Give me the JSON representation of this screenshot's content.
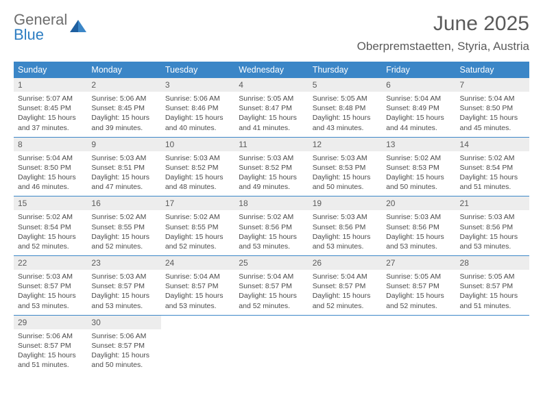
{
  "logo": {
    "top": "General",
    "bottom": "Blue"
  },
  "title": "June 2025",
  "location": "Oberpremstaetten, Styria, Austria",
  "colors": {
    "header_bg": "#3b86c7",
    "header_text": "#ffffff",
    "daynum_bg": "#ededed",
    "border": "#3b86c7",
    "body_text": "#4a4a4a",
    "logo_gray": "#6d6d6d",
    "logo_blue": "#2d7dc2"
  },
  "day_names": [
    "Sunday",
    "Monday",
    "Tuesday",
    "Wednesday",
    "Thursday",
    "Friday",
    "Saturday"
  ],
  "weeks": [
    [
      {
        "n": "1",
        "sr": "Sunrise: 5:07 AM",
        "ss": "Sunset: 8:45 PM",
        "d1": "Daylight: 15 hours",
        "d2": "and 37 minutes."
      },
      {
        "n": "2",
        "sr": "Sunrise: 5:06 AM",
        "ss": "Sunset: 8:45 PM",
        "d1": "Daylight: 15 hours",
        "d2": "and 39 minutes."
      },
      {
        "n": "3",
        "sr": "Sunrise: 5:06 AM",
        "ss": "Sunset: 8:46 PM",
        "d1": "Daylight: 15 hours",
        "d2": "and 40 minutes."
      },
      {
        "n": "4",
        "sr": "Sunrise: 5:05 AM",
        "ss": "Sunset: 8:47 PM",
        "d1": "Daylight: 15 hours",
        "d2": "and 41 minutes."
      },
      {
        "n": "5",
        "sr": "Sunrise: 5:05 AM",
        "ss": "Sunset: 8:48 PM",
        "d1": "Daylight: 15 hours",
        "d2": "and 43 minutes."
      },
      {
        "n": "6",
        "sr": "Sunrise: 5:04 AM",
        "ss": "Sunset: 8:49 PM",
        "d1": "Daylight: 15 hours",
        "d2": "and 44 minutes."
      },
      {
        "n": "7",
        "sr": "Sunrise: 5:04 AM",
        "ss": "Sunset: 8:50 PM",
        "d1": "Daylight: 15 hours",
        "d2": "and 45 minutes."
      }
    ],
    [
      {
        "n": "8",
        "sr": "Sunrise: 5:04 AM",
        "ss": "Sunset: 8:50 PM",
        "d1": "Daylight: 15 hours",
        "d2": "and 46 minutes."
      },
      {
        "n": "9",
        "sr": "Sunrise: 5:03 AM",
        "ss": "Sunset: 8:51 PM",
        "d1": "Daylight: 15 hours",
        "d2": "and 47 minutes."
      },
      {
        "n": "10",
        "sr": "Sunrise: 5:03 AM",
        "ss": "Sunset: 8:52 PM",
        "d1": "Daylight: 15 hours",
        "d2": "and 48 minutes."
      },
      {
        "n": "11",
        "sr": "Sunrise: 5:03 AM",
        "ss": "Sunset: 8:52 PM",
        "d1": "Daylight: 15 hours",
        "d2": "and 49 minutes."
      },
      {
        "n": "12",
        "sr": "Sunrise: 5:03 AM",
        "ss": "Sunset: 8:53 PM",
        "d1": "Daylight: 15 hours",
        "d2": "and 50 minutes."
      },
      {
        "n": "13",
        "sr": "Sunrise: 5:02 AM",
        "ss": "Sunset: 8:53 PM",
        "d1": "Daylight: 15 hours",
        "d2": "and 50 minutes."
      },
      {
        "n": "14",
        "sr": "Sunrise: 5:02 AM",
        "ss": "Sunset: 8:54 PM",
        "d1": "Daylight: 15 hours",
        "d2": "and 51 minutes."
      }
    ],
    [
      {
        "n": "15",
        "sr": "Sunrise: 5:02 AM",
        "ss": "Sunset: 8:54 PM",
        "d1": "Daylight: 15 hours",
        "d2": "and 52 minutes."
      },
      {
        "n": "16",
        "sr": "Sunrise: 5:02 AM",
        "ss": "Sunset: 8:55 PM",
        "d1": "Daylight: 15 hours",
        "d2": "and 52 minutes."
      },
      {
        "n": "17",
        "sr": "Sunrise: 5:02 AM",
        "ss": "Sunset: 8:55 PM",
        "d1": "Daylight: 15 hours",
        "d2": "and 52 minutes."
      },
      {
        "n": "18",
        "sr": "Sunrise: 5:02 AM",
        "ss": "Sunset: 8:56 PM",
        "d1": "Daylight: 15 hours",
        "d2": "and 53 minutes."
      },
      {
        "n": "19",
        "sr": "Sunrise: 5:03 AM",
        "ss": "Sunset: 8:56 PM",
        "d1": "Daylight: 15 hours",
        "d2": "and 53 minutes."
      },
      {
        "n": "20",
        "sr": "Sunrise: 5:03 AM",
        "ss": "Sunset: 8:56 PM",
        "d1": "Daylight: 15 hours",
        "d2": "and 53 minutes."
      },
      {
        "n": "21",
        "sr": "Sunrise: 5:03 AM",
        "ss": "Sunset: 8:56 PM",
        "d1": "Daylight: 15 hours",
        "d2": "and 53 minutes."
      }
    ],
    [
      {
        "n": "22",
        "sr": "Sunrise: 5:03 AM",
        "ss": "Sunset: 8:57 PM",
        "d1": "Daylight: 15 hours",
        "d2": "and 53 minutes."
      },
      {
        "n": "23",
        "sr": "Sunrise: 5:03 AM",
        "ss": "Sunset: 8:57 PM",
        "d1": "Daylight: 15 hours",
        "d2": "and 53 minutes."
      },
      {
        "n": "24",
        "sr": "Sunrise: 5:04 AM",
        "ss": "Sunset: 8:57 PM",
        "d1": "Daylight: 15 hours",
        "d2": "and 53 minutes."
      },
      {
        "n": "25",
        "sr": "Sunrise: 5:04 AM",
        "ss": "Sunset: 8:57 PM",
        "d1": "Daylight: 15 hours",
        "d2": "and 52 minutes."
      },
      {
        "n": "26",
        "sr": "Sunrise: 5:04 AM",
        "ss": "Sunset: 8:57 PM",
        "d1": "Daylight: 15 hours",
        "d2": "and 52 minutes."
      },
      {
        "n": "27",
        "sr": "Sunrise: 5:05 AM",
        "ss": "Sunset: 8:57 PM",
        "d1": "Daylight: 15 hours",
        "d2": "and 52 minutes."
      },
      {
        "n": "28",
        "sr": "Sunrise: 5:05 AM",
        "ss": "Sunset: 8:57 PM",
        "d1": "Daylight: 15 hours",
        "d2": "and 51 minutes."
      }
    ],
    [
      {
        "n": "29",
        "sr": "Sunrise: 5:06 AM",
        "ss": "Sunset: 8:57 PM",
        "d1": "Daylight: 15 hours",
        "d2": "and 51 minutes."
      },
      {
        "n": "30",
        "sr": "Sunrise: 5:06 AM",
        "ss": "Sunset: 8:57 PM",
        "d1": "Daylight: 15 hours",
        "d2": "and 50 minutes."
      },
      {
        "empty": true
      },
      {
        "empty": true
      },
      {
        "empty": true
      },
      {
        "empty": true
      },
      {
        "empty": true
      }
    ]
  ]
}
